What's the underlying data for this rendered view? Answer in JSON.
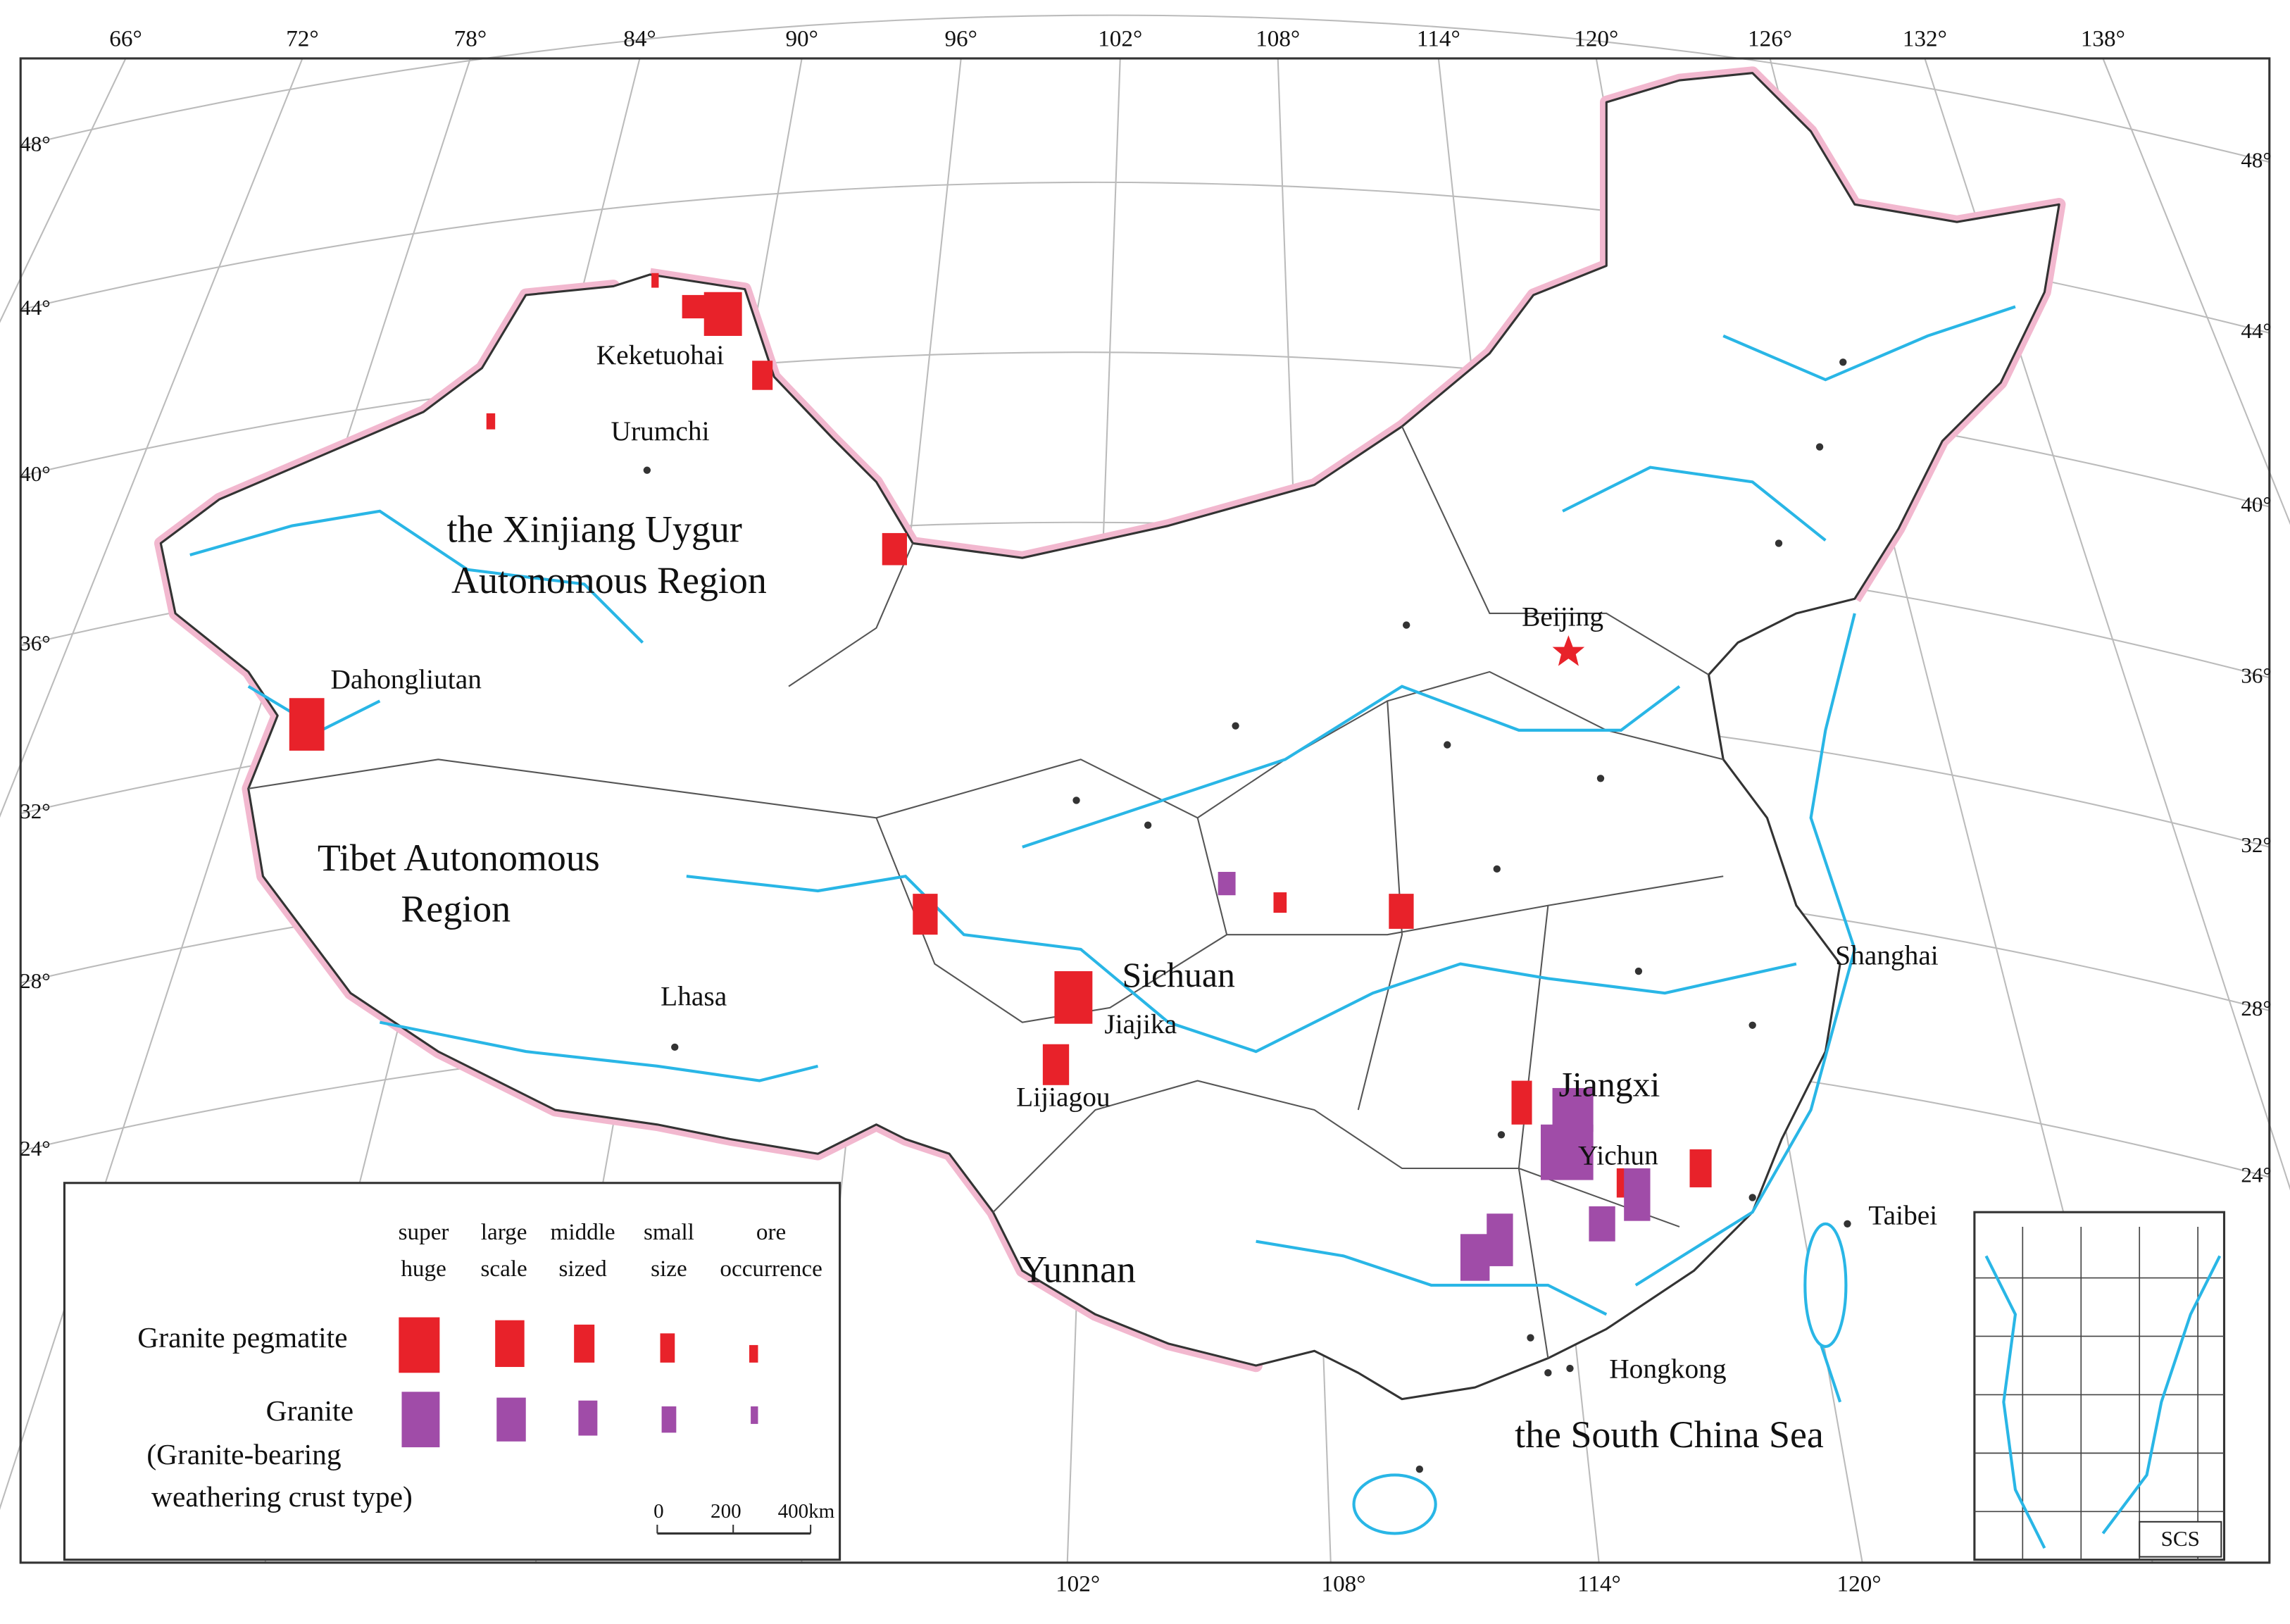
{
  "map": {
    "top_longitudes": [
      "66°",
      "72°",
      "78°",
      "84°",
      "90°",
      "96°",
      "102°",
      "108°",
      "114°",
      "120°",
      "126°",
      "132°",
      "138°"
    ],
    "bottom_longitudes": [
      "102°",
      "108°",
      "114°",
      "120°"
    ],
    "left_latitudes": [
      "48°",
      "44°",
      "40°",
      "36°",
      "32°",
      "28°",
      "24°"
    ],
    "right_latitudes": [
      "48°",
      "44°",
      "40°",
      "36°",
      "32°",
      "28°",
      "24°"
    ],
    "labels": [
      "Keketuohai",
      "Urumchi",
      "the Xinjiang Uygur",
      "Autonomous Region",
      "Dahongliutan",
      "Tibet Autonomous",
      "Region",
      "Lhasa",
      "Sichuan",
      "Jiajika",
      "Lijiagou",
      "Beijing",
      "Shanghai",
      "Jiangxi",
      "Yichun",
      "Taibei",
      "Yunnan",
      "Hongkong",
      "the South China Sea"
    ],
    "inset_label": "SCS"
  },
  "legend": {
    "columns": [
      [
        "super",
        "huge"
      ],
      [
        "large",
        "scale"
      ],
      [
        "middle",
        "sized"
      ],
      [
        "small",
        "size"
      ],
      [
        "ore",
        "occurrence"
      ]
    ],
    "rows": [
      "Granite pegmatite",
      "Granite",
      "(Granite-bearing",
      "weathering crust type)"
    ],
    "scale": [
      "0",
      "200",
      "400km"
    ]
  }
}
